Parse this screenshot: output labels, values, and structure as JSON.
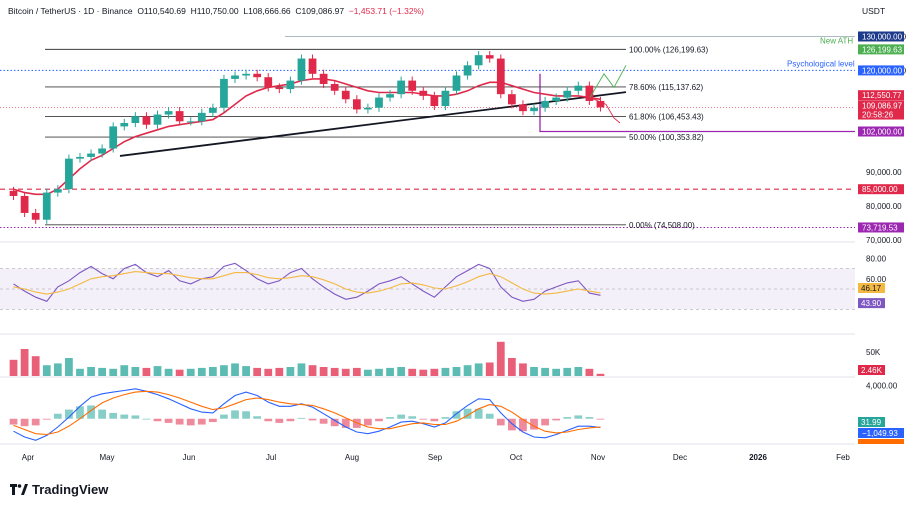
{
  "header": {
    "symbol": "Bitcoin / TetherUS · 1D · Binance",
    "open": "O110,540.69",
    "high": "H110,750.00",
    "low": "L108,666.66",
    "close": "C109,086.97",
    "change": "−1,453.71 (−1.32%)",
    "currency": "USDT"
  },
  "brand": "TradingView",
  "colors": {
    "up": "#26a69a",
    "down": "#e0294a",
    "ma": "#e0294a",
    "rsi": "#7e57c2",
    "rsi_ma": "#f4b942",
    "macd": "#2962ff",
    "signal": "#ff6d00",
    "psych": "#2962ff",
    "ath": "#4caf50",
    "support": "#9c27b0",
    "level85": "#e0294a"
  },
  "chart_data": [
    {
      "type": "candlestick",
      "pane": "price",
      "x": [
        "Apr",
        "May",
        "Jun",
        "Jul",
        "Aug",
        "Sep",
        "Oct",
        "Nov",
        "Dec",
        "2026",
        "Feb"
      ],
      "y_ticks": [
        "130,000.00",
        "120,000.00",
        "90,000.00",
        "80,000.00",
        "70,000.00"
      ],
      "close_series": [
        83000,
        78000,
        76000,
        84000,
        85000,
        94000,
        94500,
        95500,
        97000,
        103500,
        104500,
        106500,
        104000,
        107000,
        108000,
        105000,
        105000,
        107500,
        109000,
        117500,
        118500,
        119000,
        118000,
        115000,
        114500,
        117000,
        123500,
        119000,
        116000,
        114000,
        111500,
        108500,
        109000,
        112000,
        113000,
        117000,
        114000,
        112500,
        109500,
        114000,
        118500,
        121500,
        124500,
        123500,
        113000,
        110000,
        108000,
        109000,
        111000,
        112000,
        114000,
        115500,
        111000,
        109087
      ],
      "ma_series": [
        85000,
        84000,
        83500,
        83500,
        85000,
        88000,
        91000,
        93500,
        95000,
        97000,
        99000,
        100500,
        101500,
        102500,
        103500,
        104000,
        104500,
        105000,
        105500,
        107500,
        110000,
        112500,
        114000,
        115000,
        115500,
        116000,
        117000,
        117500,
        117500,
        117000,
        116000,
        115000,
        114000,
        113500,
        113500,
        113500,
        113500,
        113000,
        112500,
        112500,
        113000,
        114000,
        115500,
        116500,
        116500,
        115500,
        114500,
        113500,
        113000,
        112500,
        112500,
        112500,
        112000,
        111500
      ],
      "levels": [
        {
          "label": "100.00% (126,199.63)",
          "value": 126199.63
        },
        {
          "label": "78.60% (115,137.62)",
          "value": 115137.62
        },
        {
          "label": "61.80% (106,453.43)",
          "value": 106453.43
        },
        {
          "label": "50.00% (100,353.82)",
          "value": 100353.82
        },
        {
          "label": "0.00% (74,508.00)",
          "value": 74508.0
        }
      ],
      "annotations": [
        "New ATH",
        "Psychological level"
      ],
      "price_tags": [
        "130,000.00",
        "126,199.63",
        "120,000.00",
        "112,550.77",
        "109,086.97",
        "20:58:26",
        "102,000.00",
        "85,000.00",
        "73,719.53"
      ]
    },
    {
      "type": "line",
      "pane": "RSI",
      "y_ticks": [
        "80.00",
        "60.00",
        "46.17",
        "43.90"
      ],
      "series": [
        {
          "values": [
            55,
            48,
            42,
            38,
            52,
            58,
            66,
            72,
            65,
            60,
            70,
            74,
            66,
            62,
            68,
            58,
            55,
            60,
            62,
            72,
            75,
            68,
            60,
            55,
            58,
            66,
            70,
            60,
            52,
            45,
            40,
            42,
            48,
            55,
            58,
            62,
            55,
            48,
            42,
            52,
            62,
            68,
            74,
            70,
            52,
            42,
            38,
            40,
            48,
            52,
            56,
            58,
            46,
            43.9
          ]
        },
        {
          "values": [
            52,
            50,
            47,
            45,
            47,
            50,
            55,
            60,
            62,
            63,
            65,
            67,
            66,
            65,
            65,
            63,
            61,
            60,
            60,
            63,
            66,
            66,
            64,
            61,
            60,
            61,
            63,
            62,
            59,
            55,
            50,
            47,
            46,
            48,
            51,
            55,
            56,
            54,
            51,
            50,
            53,
            57,
            62,
            65,
            62,
            56,
            50,
            46,
            45,
            46,
            48,
            50,
            48,
            46.17
          ]
        }
      ]
    },
    {
      "type": "bar",
      "pane": "Volume",
      "y_ticks": [
        "50K",
        "2.46K"
      ],
      "values": [
        18,
        30,
        22,
        12,
        14,
        20,
        8,
        10,
        9,
        8,
        12,
        10,
        9,
        11,
        8,
        7,
        8,
        9,
        10,
        12,
        14,
        11,
        9,
        8,
        9,
        10,
        14,
        12,
        10,
        9,
        8,
        9,
        7,
        8,
        9,
        10,
        8,
        7,
        8,
        9,
        10,
        12,
        14,
        15,
        38,
        20,
        14,
        10,
        9,
        8,
        9,
        10,
        8,
        2.46
      ]
    },
    {
      "type": "line",
      "pane": "MACD",
      "y_ticks": [
        "4,000.00",
        "31.99",
        "−1,049.93"
      ],
      "series": [
        {
          "values": [
            -1500,
            -2200,
            -2600,
            -2000,
            -1000,
            200,
            1500,
            2600,
            3000,
            3200,
            3400,
            3600,
            3300,
            2900,
            2400,
            1800,
            1200,
            800,
            700,
            1800,
            2800,
            3200,
            2800,
            2000,
            1500,
            1500,
            1800,
            1400,
            600,
            -200,
            -1000,
            -1600,
            -1800,
            -1500,
            -1000,
            -400,
            -300,
            -600,
            -1000,
            -500,
            600,
            1600,
            2400,
            2300,
            700,
            -600,
            -1600,
            -2200,
            -2300,
            -1900,
            -1400,
            -900,
            -900,
            -1049.93
          ]
        },
        {
          "values": [
            -800,
            -1300,
            -1800,
            -1900,
            -1600,
            -900,
            0,
            1000,
            1900,
            2500,
            2900,
            3200,
            3300,
            3200,
            2900,
            2500,
            2000,
            1500,
            1100,
            1300,
            1800,
            2300,
            2500,
            2300,
            2000,
            1800,
            1700,
            1600,
            1200,
            700,
            100,
            -500,
            -1000,
            -1200,
            -1200,
            -900,
            -600,
            -500,
            -700,
            -700,
            -300,
            400,
            1200,
            1700,
            1500,
            800,
            -100,
            -900,
            -1500,
            -1700,
            -1600,
            -1300,
            -1100,
            -1000
          ]
        }
      ]
    }
  ]
}
